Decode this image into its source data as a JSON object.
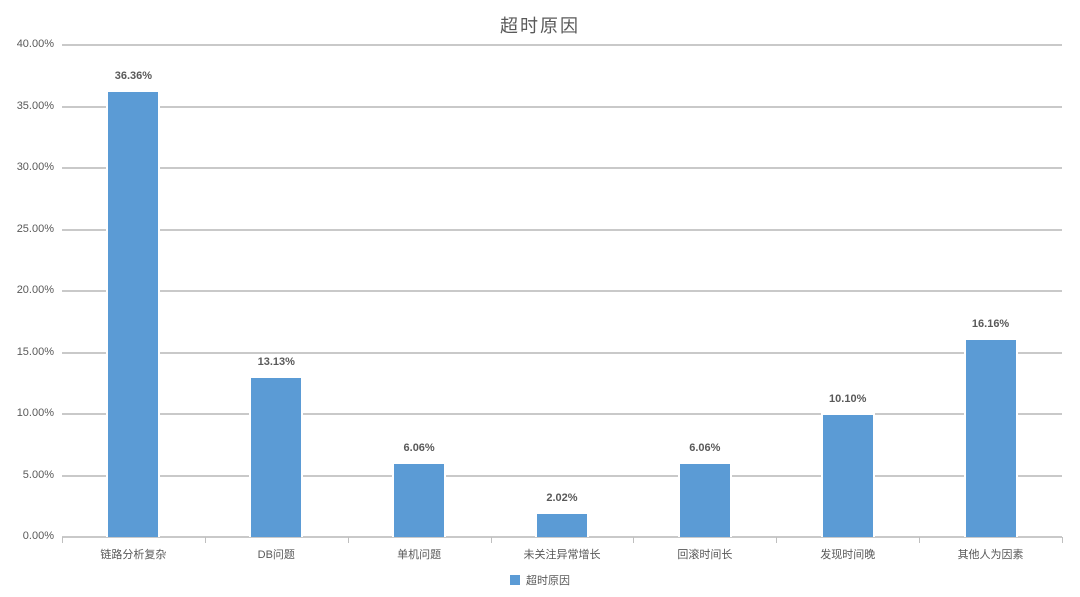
{
  "title": "超时原因",
  "legend": {
    "label": "超时原因"
  },
  "colors": {
    "bar": "#5B9BD5",
    "bar_border": "#FFFFFF",
    "gridline": "#C9C9C9",
    "tick": "#BFBFBF",
    "text": "#595959"
  },
  "chart_data": {
    "type": "bar",
    "title": "超时原因",
    "categories": [
      "链路分析复杂",
      "DB问题",
      "单机问题",
      "未关注异常增长",
      "回滚时间长",
      "发现时间晚",
      "其他人为因素"
    ],
    "values": [
      36.36,
      13.13,
      6.06,
      2.02,
      6.06,
      10.1,
      16.16
    ],
    "value_labels": [
      "36.36%",
      "13.13%",
      "6.06%",
      "2.02%",
      "6.06%",
      "10.10%",
      "16.16%"
    ],
    "xlabel": "",
    "ylabel": "",
    "ylim": [
      0,
      40
    ],
    "ytick_step": 5,
    "ytick_labels": [
      "0.00%",
      "5.00%",
      "10.00%",
      "15.00%",
      "20.00%",
      "25.00%",
      "30.00%",
      "35.00%",
      "40.00%"
    ],
    "grid": true,
    "legend_position": "bottom",
    "series_name": "超时原因"
  }
}
